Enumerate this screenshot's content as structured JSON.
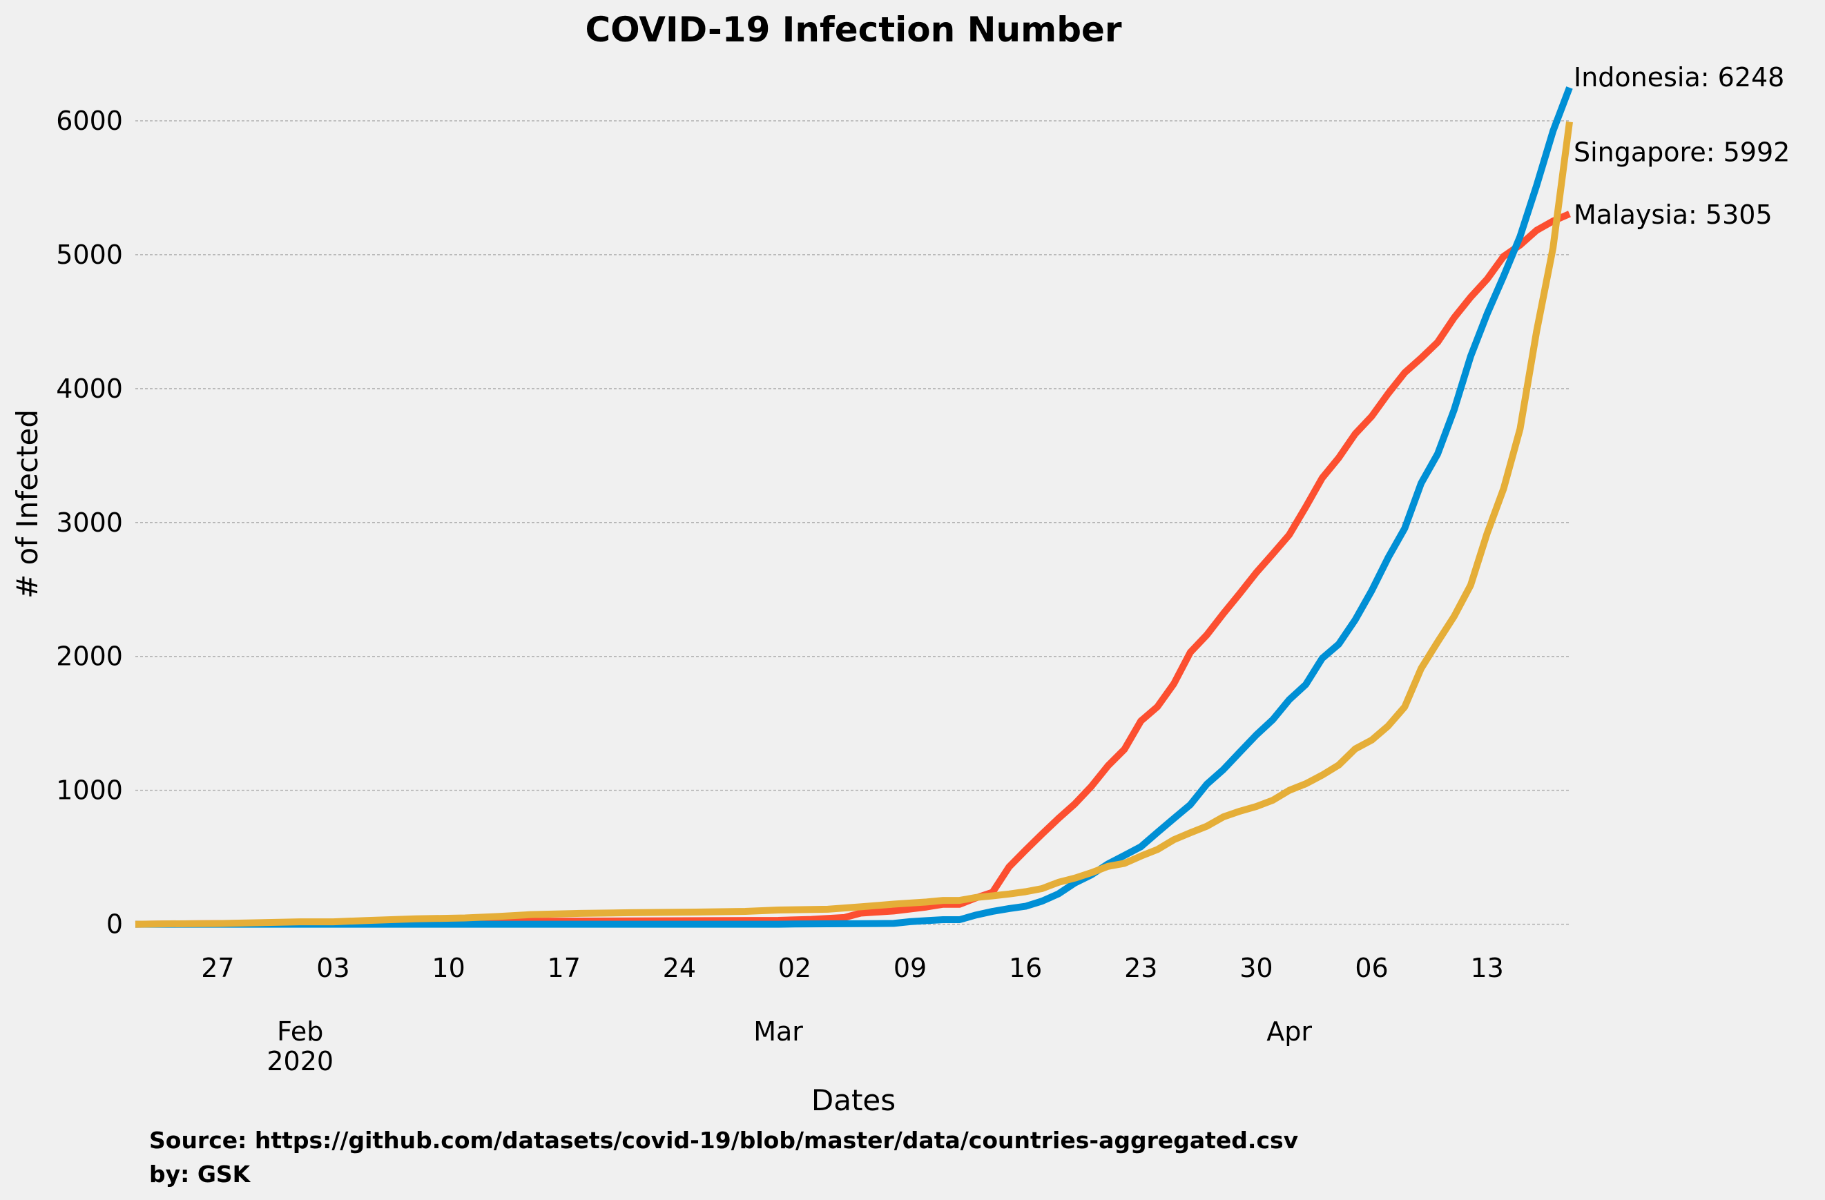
{
  "chart_data": {
    "type": "line",
    "title": "COVID-19 Infection Number",
    "xlabel": "Dates",
    "ylabel": "# of Infected",
    "xlim": [
      "2020-01-22",
      "2020-04-18"
    ],
    "ylim": [
      -100,
      6500
    ],
    "yticks": [
      0,
      1000,
      2000,
      3000,
      4000,
      5000,
      6000
    ],
    "grid": "y",
    "xticks": [
      {
        "date": "2020-01-27",
        "label": "27",
        "major": ""
      },
      {
        "date": "2020-02-03",
        "label": "03",
        "major": ""
      },
      {
        "date": "2020-02-10",
        "label": "10",
        "major": ""
      },
      {
        "date": "2020-02-17",
        "label": "17",
        "major": ""
      },
      {
        "date": "2020-02-24",
        "label": "24",
        "major": ""
      },
      {
        "date": "2020-03-02",
        "label": "02",
        "major": ""
      },
      {
        "date": "2020-03-09",
        "label": "09",
        "major": ""
      },
      {
        "date": "2020-03-16",
        "label": "16",
        "major": ""
      },
      {
        "date": "2020-03-23",
        "label": "23",
        "major": ""
      },
      {
        "date": "2020-03-30",
        "label": "30",
        "major": ""
      },
      {
        "date": "2020-04-06",
        "label": "06",
        "major": ""
      },
      {
        "date": "2020-04-13",
        "label": "13",
        "major": ""
      }
    ],
    "month_labels": [
      {
        "date": "2020-02-01",
        "label": "Feb",
        "sublabel": "2020"
      },
      {
        "date": "2020-03-01",
        "label": "Mar",
        "sublabel": ""
      },
      {
        "date": "2020-04-01",
        "label": "Apr",
        "sublabel": ""
      }
    ],
    "series": [
      {
        "name": "Malaysia",
        "color": "#fc4f30",
        "end_label": "Malaysia: 5305",
        "points": [
          [
            "2020-01-22",
            0
          ],
          [
            "2020-01-25",
            3
          ],
          [
            "2020-01-29",
            7
          ],
          [
            "2020-02-03",
            8
          ],
          [
            "2020-02-08",
            16
          ],
          [
            "2020-02-15",
            22
          ],
          [
            "2020-03-01",
            29
          ],
          [
            "2020-03-03",
            36
          ],
          [
            "2020-03-05",
            50
          ],
          [
            "2020-03-06",
            83
          ],
          [
            "2020-03-08",
            99
          ],
          [
            "2020-03-10",
            129
          ],
          [
            "2020-03-11",
            149
          ],
          [
            "2020-03-12",
            149
          ],
          [
            "2020-03-13",
            197
          ],
          [
            "2020-03-14",
            238
          ],
          [
            "2020-03-15",
            428
          ],
          [
            "2020-03-16",
            553
          ],
          [
            "2020-03-17",
            673
          ],
          [
            "2020-03-18",
            790
          ],
          [
            "2020-03-19",
            900
          ],
          [
            "2020-03-20",
            1030
          ],
          [
            "2020-03-21",
            1183
          ],
          [
            "2020-03-22",
            1306
          ],
          [
            "2020-03-23",
            1518
          ],
          [
            "2020-03-24",
            1624
          ],
          [
            "2020-03-25",
            1796
          ],
          [
            "2020-03-26",
            2031
          ],
          [
            "2020-03-27",
            2161
          ],
          [
            "2020-03-28",
            2320
          ],
          [
            "2020-03-29",
            2470
          ],
          [
            "2020-03-30",
            2626
          ],
          [
            "2020-03-31",
            2766
          ],
          [
            "2020-04-01",
            2908
          ],
          [
            "2020-04-02",
            3116
          ],
          [
            "2020-04-03",
            3333
          ],
          [
            "2020-04-04",
            3483
          ],
          [
            "2020-04-05",
            3662
          ],
          [
            "2020-04-06",
            3793
          ],
          [
            "2020-04-07",
            3963
          ],
          [
            "2020-04-08",
            4119
          ],
          [
            "2020-04-09",
            4228
          ],
          [
            "2020-04-10",
            4346
          ],
          [
            "2020-04-11",
            4530
          ],
          [
            "2020-04-12",
            4683
          ],
          [
            "2020-04-13",
            4817
          ],
          [
            "2020-04-14",
            4987
          ],
          [
            "2020-04-15",
            5072
          ],
          [
            "2020-04-16",
            5182
          ],
          [
            "2020-04-17",
            5251
          ],
          [
            "2020-04-18",
            5305
          ]
        ]
      },
      {
        "name": "Indonesia",
        "color": "#008fd5",
        "end_label": "Indonesia: 6248",
        "points": [
          [
            "2020-01-22",
            0
          ],
          [
            "2020-03-01",
            0
          ],
          [
            "2020-03-02",
            2
          ],
          [
            "2020-03-06",
            4
          ],
          [
            "2020-03-08",
            6
          ],
          [
            "2020-03-09",
            19
          ],
          [
            "2020-03-10",
            27
          ],
          [
            "2020-03-11",
            34
          ],
          [
            "2020-03-12",
            34
          ],
          [
            "2020-03-13",
            69
          ],
          [
            "2020-03-14",
            96
          ],
          [
            "2020-03-15",
            117
          ],
          [
            "2020-03-16",
            134
          ],
          [
            "2020-03-17",
            172
          ],
          [
            "2020-03-18",
            227
          ],
          [
            "2020-03-19",
            309
          ],
          [
            "2020-03-20",
            369
          ],
          [
            "2020-03-21",
            450
          ],
          [
            "2020-03-22",
            514
          ],
          [
            "2020-03-23",
            579
          ],
          [
            "2020-03-24",
            686
          ],
          [
            "2020-03-25",
            790
          ],
          [
            "2020-03-26",
            893
          ],
          [
            "2020-03-27",
            1046
          ],
          [
            "2020-03-28",
            1155
          ],
          [
            "2020-03-29",
            1285
          ],
          [
            "2020-03-30",
            1414
          ],
          [
            "2020-03-31",
            1528
          ],
          [
            "2020-04-01",
            1677
          ],
          [
            "2020-04-02",
            1790
          ],
          [
            "2020-04-03",
            1986
          ],
          [
            "2020-04-04",
            2092
          ],
          [
            "2020-04-05",
            2273
          ],
          [
            "2020-04-06",
            2491
          ],
          [
            "2020-04-07",
            2738
          ],
          [
            "2020-04-08",
            2956
          ],
          [
            "2020-04-09",
            3293
          ],
          [
            "2020-04-10",
            3512
          ],
          [
            "2020-04-11",
            3842
          ],
          [
            "2020-04-12",
            4241
          ],
          [
            "2020-04-13",
            4557
          ],
          [
            "2020-04-14",
            4839
          ],
          [
            "2020-04-15",
            5136
          ],
          [
            "2020-04-16",
            5516
          ],
          [
            "2020-04-17",
            5923
          ],
          [
            "2020-04-18",
            6248
          ]
        ]
      },
      {
        "name": "Singapore",
        "color": "#e5ae38",
        "end_label": "Singapore: 5992",
        "points": [
          [
            "2020-01-22",
            0
          ],
          [
            "2020-01-24",
            3
          ],
          [
            "2020-01-27",
            5
          ],
          [
            "2020-01-30",
            13
          ],
          [
            "2020-02-01",
            18
          ],
          [
            "2020-02-03",
            18
          ],
          [
            "2020-02-05",
            28
          ],
          [
            "2020-02-08",
            40
          ],
          [
            "2020-02-11",
            47
          ],
          [
            "2020-02-13",
            58
          ],
          [
            "2020-02-15",
            72
          ],
          [
            "2020-02-18",
            81
          ],
          [
            "2020-02-21",
            86
          ],
          [
            "2020-02-25",
            91
          ],
          [
            "2020-02-28",
            96
          ],
          [
            "2020-03-01",
            106
          ],
          [
            "2020-03-04",
            112
          ],
          [
            "2020-03-06",
            130
          ],
          [
            "2020-03-08",
            150
          ],
          [
            "2020-03-10",
            166
          ],
          [
            "2020-03-11",
            178
          ],
          [
            "2020-03-12",
            178
          ],
          [
            "2020-03-13",
            200
          ],
          [
            "2020-03-14",
            212
          ],
          [
            "2020-03-15",
            226
          ],
          [
            "2020-03-16",
            243
          ],
          [
            "2020-03-17",
            266
          ],
          [
            "2020-03-18",
            313
          ],
          [
            "2020-03-19",
            345
          ],
          [
            "2020-03-20",
            385
          ],
          [
            "2020-03-21",
            432
          ],
          [
            "2020-03-22",
            455
          ],
          [
            "2020-03-23",
            509
          ],
          [
            "2020-03-24",
            558
          ],
          [
            "2020-03-25",
            631
          ],
          [
            "2020-03-26",
            683
          ],
          [
            "2020-03-27",
            732
          ],
          [
            "2020-03-28",
            802
          ],
          [
            "2020-03-29",
            844
          ],
          [
            "2020-03-30",
            879
          ],
          [
            "2020-03-31",
            926
          ],
          [
            "2020-04-01",
            1000
          ],
          [
            "2020-04-02",
            1049
          ],
          [
            "2020-04-03",
            1114
          ],
          [
            "2020-04-04",
            1189
          ],
          [
            "2020-04-05",
            1309
          ],
          [
            "2020-04-06",
            1375
          ],
          [
            "2020-04-07",
            1481
          ],
          [
            "2020-04-08",
            1623
          ],
          [
            "2020-04-09",
            1910
          ],
          [
            "2020-04-10",
            2108
          ],
          [
            "2020-04-11",
            2299
          ],
          [
            "2020-04-12",
            2532
          ],
          [
            "2020-04-13",
            2918
          ],
          [
            "2020-04-14",
            3252
          ],
          [
            "2020-04-15",
            3699
          ],
          [
            "2020-04-16",
            4427
          ],
          [
            "2020-04-17",
            5050
          ],
          [
            "2020-04-18",
            5992
          ]
        ]
      }
    ]
  },
  "footer": {
    "source": "Source: https://github.com/datasets/covid-19/blob/master/data/countries-aggregated.csv",
    "byline": "by: GSK"
  }
}
